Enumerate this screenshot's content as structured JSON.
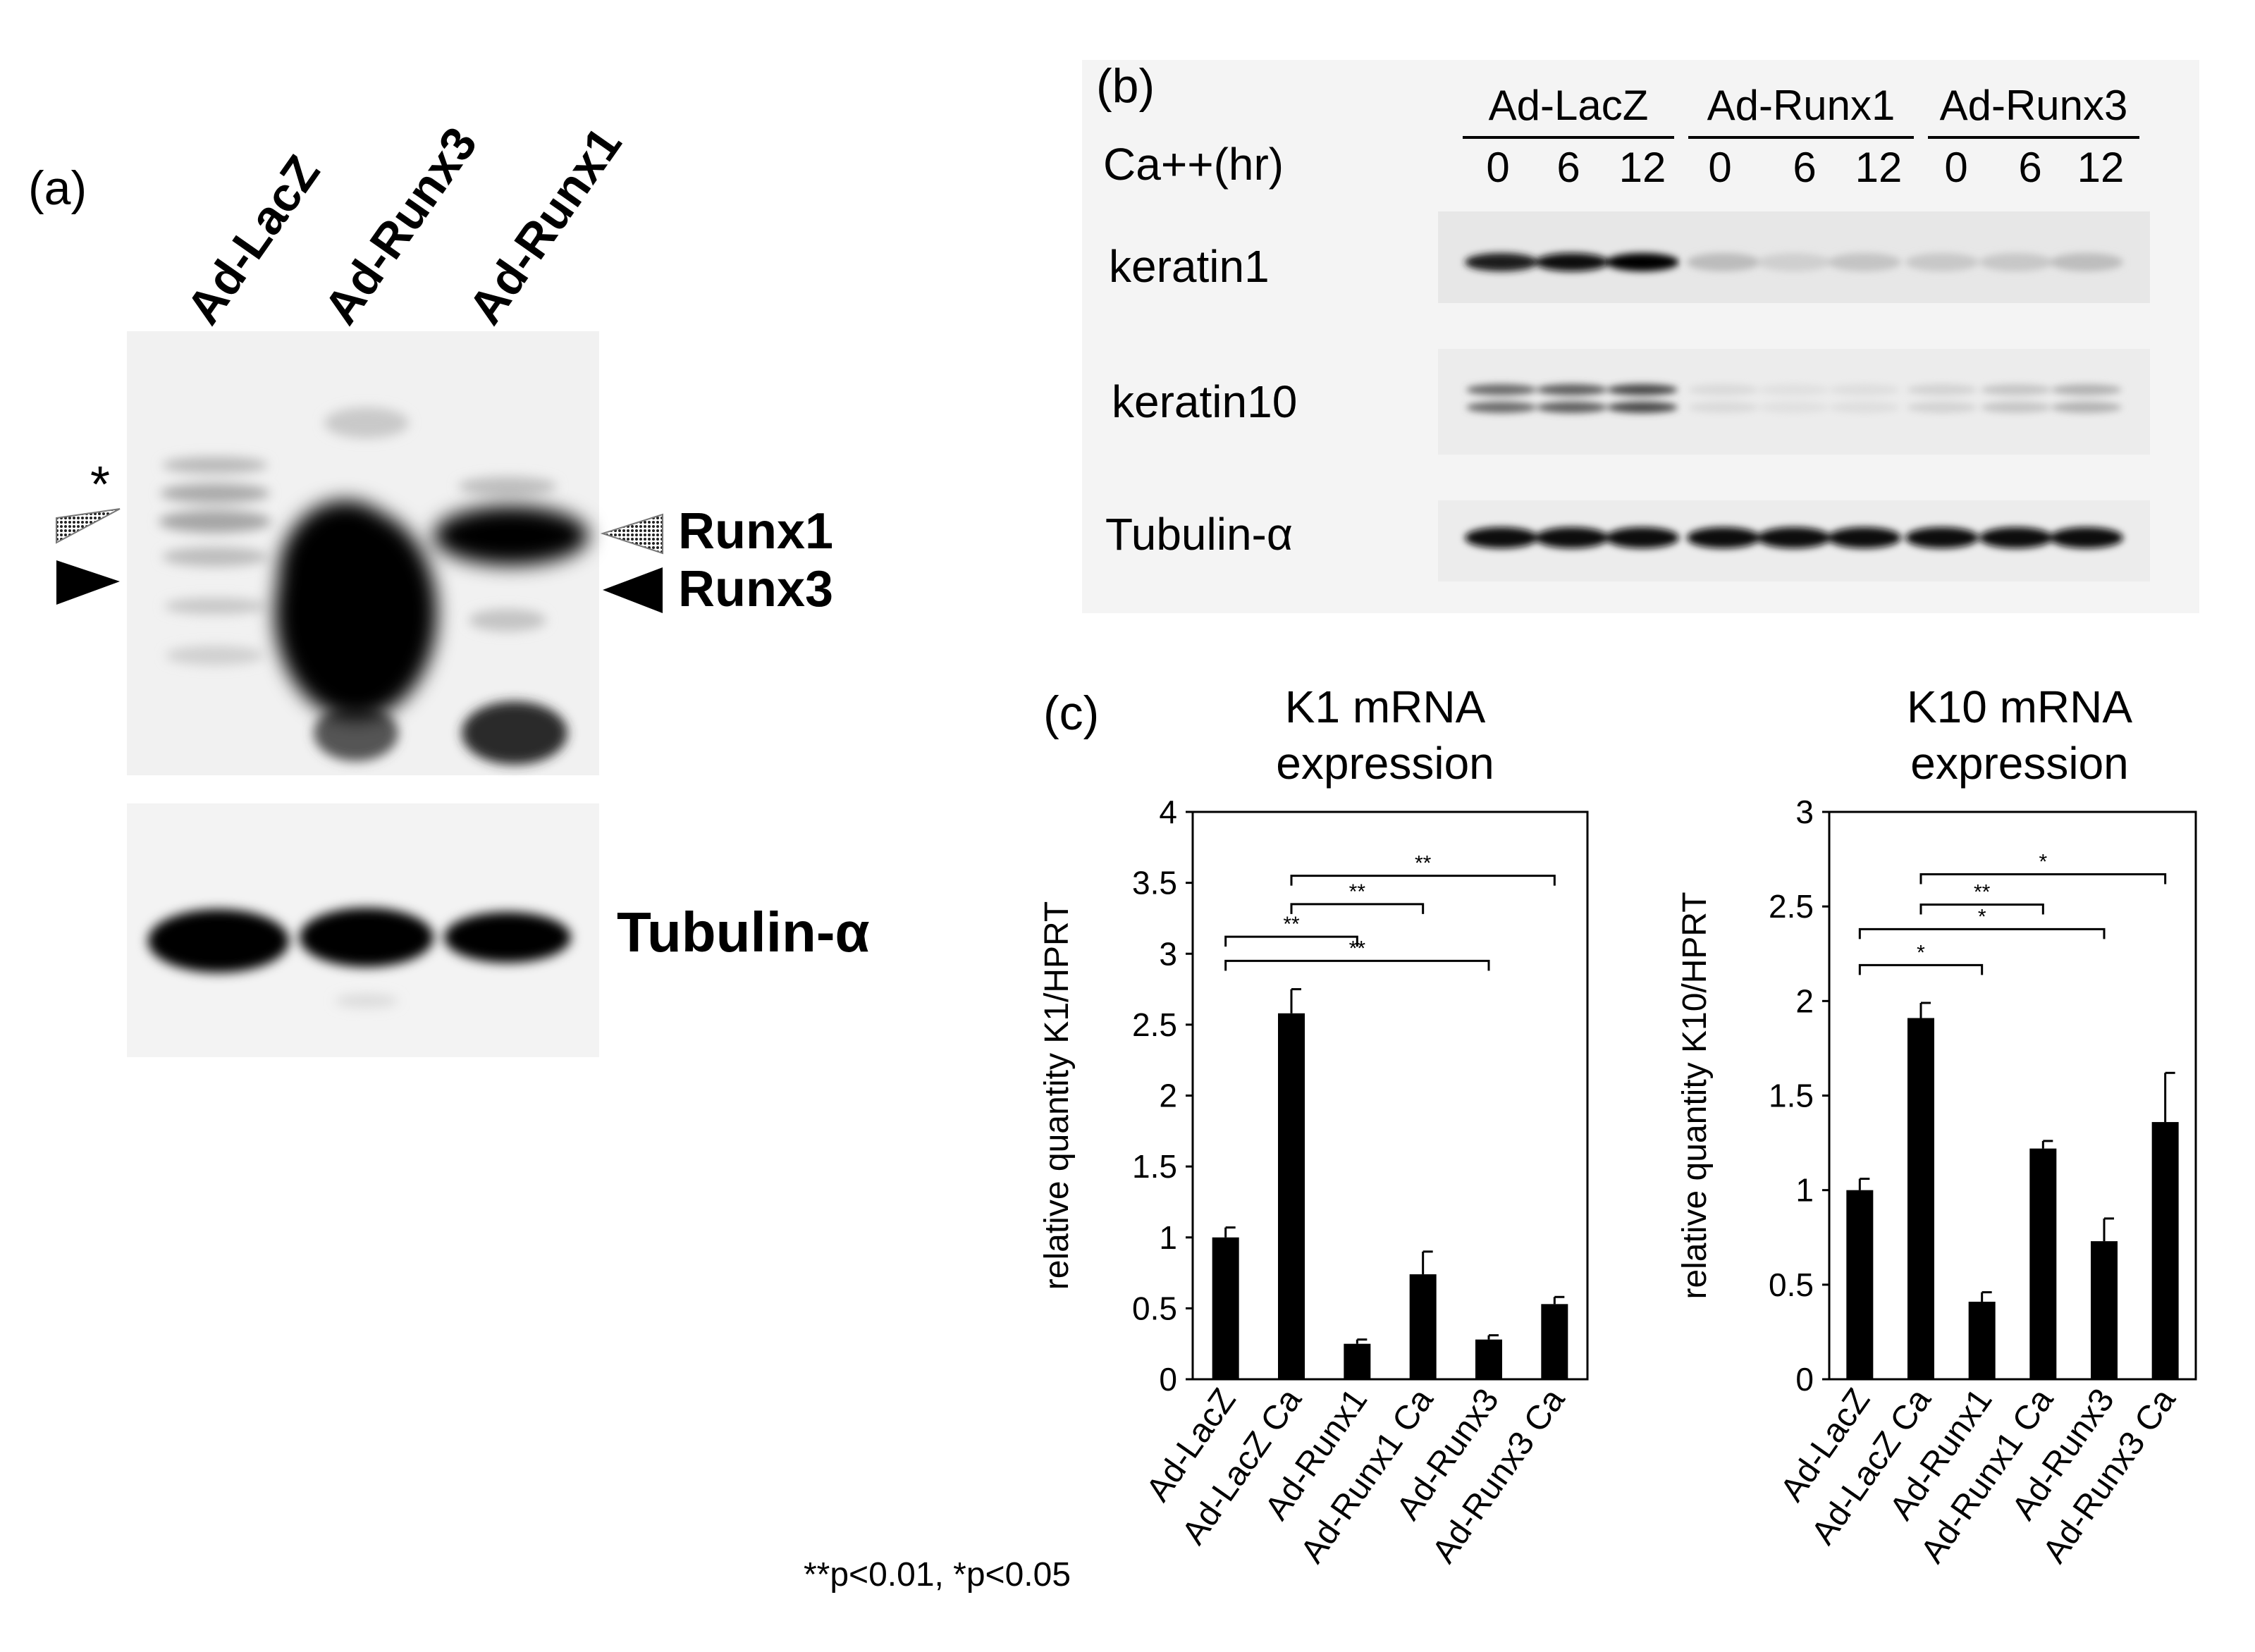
{
  "panel_a": {
    "letter": "(a)",
    "lanes": [
      "Ad-LacZ",
      "Ad-Runx3",
      "Ad-Runx1"
    ],
    "asterisk": "*",
    "band_labels": [
      "Runx1",
      "Runx3"
    ],
    "loading_label": "Tubulin-α"
  },
  "panel_b": {
    "letter": "(b)",
    "groups": [
      "Ad-LacZ",
      "Ad-Runx1",
      "Ad-Runx3"
    ],
    "time_label": "Ca++(hr)",
    "time_points": [
      "0",
      "6",
      "12",
      "0",
      "6",
      "12",
      "0",
      "6",
      "12"
    ],
    "rows": [
      "keratin1",
      "keratin10",
      "Tubulin-α"
    ]
  },
  "panel_c": {
    "letter": "(c)",
    "footnote": "**p<0.01, *p<0.05"
  },
  "chart_data": [
    {
      "type": "bar",
      "title": "K1 mRNA expression",
      "title_lines": [
        "K1 mRNA",
        "expression"
      ],
      "ylabel": "relative quantity K1/HPRT",
      "xlabel": "",
      "categories": [
        "Ad-LacZ",
        "Ad-LacZ Ca",
        "Ad-Runx1",
        "Ad-Runx1 Ca",
        "Ad-Runx3",
        "Ad-Runx3 Ca"
      ],
      "values": [
        1.0,
        2.58,
        0.25,
        0.74,
        0.28,
        0.53
      ],
      "errors": [
        0.07,
        0.17,
        0.03,
        0.16,
        0.03,
        0.05
      ],
      "ylim": [
        0,
        4
      ],
      "yticks": [
        "0",
        "0.5",
        "1",
        "1.5",
        "2",
        "2.5",
        "3",
        "3.5",
        "4"
      ],
      "bar_color": "#000000",
      "significance": [
        {
          "from": 0,
          "to": 2,
          "label": "**"
        },
        {
          "from": 0,
          "to": 4,
          "label": "**"
        },
        {
          "from": 1,
          "to": 3,
          "label": "**"
        },
        {
          "from": 1,
          "to": 5,
          "label": "**"
        }
      ]
    },
    {
      "type": "bar",
      "title": "K10 mRNA expression",
      "title_lines": [
        "K10 mRNA",
        "expression"
      ],
      "ylabel": "relative quantity K10/HPRT",
      "xlabel": "",
      "categories": [
        "Ad-LacZ",
        "Ad-LacZ Ca",
        "Ad-Runx1",
        "Ad-Runx1 Ca",
        "Ad-Runx3",
        "Ad-Runx3 Ca"
      ],
      "values": [
        1.0,
        1.91,
        0.41,
        1.22,
        0.73,
        1.36
      ],
      "errors": [
        0.06,
        0.08,
        0.05,
        0.04,
        0.12,
        0.26
      ],
      "ylim": [
        0,
        3
      ],
      "yticks": [
        "0",
        "0.5",
        "1",
        "1.5",
        "2",
        "2.5",
        "3"
      ],
      "bar_color": "#000000",
      "significance": [
        {
          "from": 0,
          "to": 2,
          "label": "*"
        },
        {
          "from": 0,
          "to": 4,
          "label": "*"
        },
        {
          "from": 1,
          "to": 3,
          "label": "**"
        },
        {
          "from": 1,
          "to": 5,
          "label": "*"
        }
      ]
    }
  ]
}
